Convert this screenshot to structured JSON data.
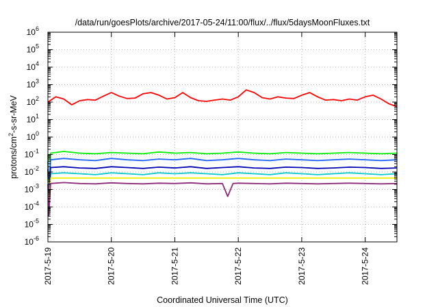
{
  "chart_data": {
    "type": "line",
    "title": "/data/run/goesPlots/archive/2017-05-24/11:00/flux/../flux/5daysMoonFluxes.txt",
    "xlabel": "Coordinated Universal Time (UTC)",
    "ylabel": {
      "base": "protons/cm",
      "sup": "2",
      "rest": "-s-sr-MeV"
    },
    "y_scale": "log",
    "ylim": [
      1e-06,
      1000000.0
    ],
    "xlim": [
      "2017-05-19 00:00",
      "2017-05-24 12:00"
    ],
    "grid": true,
    "x_ticks": [
      "2017-5-19",
      "2017-5-20",
      "2017-5-21",
      "2017-5-22",
      "2017-5-23",
      "2017-5-24"
    ],
    "y_ticks": [
      {
        "base": "10",
        "exp": "-6",
        "value": 1e-06
      },
      {
        "base": "10",
        "exp": "-5",
        "value": 1e-05
      },
      {
        "base": "10",
        "exp": "-4",
        "value": 0.0001
      },
      {
        "base": "10",
        "exp": "-3",
        "value": 0.001
      },
      {
        "base": "10",
        "exp": "-2",
        "value": 0.01
      },
      {
        "base": "10",
        "exp": "-1",
        "value": 0.1
      },
      {
        "base": "10",
        "exp": "0",
        "value": 1
      },
      {
        "base": "10",
        "exp": "1",
        "value": 10
      },
      {
        "base": "10",
        "exp": "2",
        "value": 100
      },
      {
        "base": "10",
        "exp": "3",
        "value": 1000
      },
      {
        "base": "10",
        "exp": "4",
        "value": 10000
      },
      {
        "base": "10",
        "exp": "5",
        "value": 100000
      },
      {
        "base": "10",
        "exp": "6",
        "value": 1000000
      }
    ],
    "series": [
      {
        "color": "#ff0000",
        "x": [
          "2017-05-19 00:00",
          "2017-05-19 03:00",
          "2017-05-19 06:00",
          "2017-05-19 09:00",
          "2017-05-19 12:00",
          "2017-05-19 15:00",
          "2017-05-19 18:00",
          "2017-05-19 21:00",
          "2017-05-20 00:00",
          "2017-05-20 03:00",
          "2017-05-20 06:00",
          "2017-05-20 09:00",
          "2017-05-20 12:00",
          "2017-05-20 15:00",
          "2017-05-20 18:00",
          "2017-05-20 21:00",
          "2017-05-21 00:00",
          "2017-05-21 03:00",
          "2017-05-21 06:00",
          "2017-05-21 09:00",
          "2017-05-21 12:00",
          "2017-05-21 15:00",
          "2017-05-21 18:00",
          "2017-05-21 21:00",
          "2017-05-22 00:00",
          "2017-05-22 03:00",
          "2017-05-22 06:00",
          "2017-05-22 09:00",
          "2017-05-22 12:00",
          "2017-05-22 15:00",
          "2017-05-22 18:00",
          "2017-05-22 21:00",
          "2017-05-23 00:00",
          "2017-05-23 03:00",
          "2017-05-23 06:00",
          "2017-05-23 09:00",
          "2017-05-23 12:00",
          "2017-05-23 15:00",
          "2017-05-23 18:00",
          "2017-05-23 21:00",
          "2017-05-24 00:00",
          "2017-05-24 03:00",
          "2017-05-24 06:00",
          "2017-05-24 09:00",
          "2017-05-24 12:00"
        ],
        "y": [
          100,
          200,
          150,
          70,
          120,
          140,
          130,
          220,
          350,
          220,
          160,
          170,
          300,
          350,
          250,
          150,
          180,
          350,
          180,
          120,
          110,
          130,
          150,
          130,
          200,
          500,
          350,
          180,
          150,
          200,
          170,
          160,
          250,
          350,
          200,
          130,
          140,
          120,
          150,
          130,
          200,
          250,
          150,
          80,
          55
        ]
      },
      {
        "color": "#00ee00",
        "x": [
          "2017-05-19 00:00",
          "2017-05-19 00:20",
          "2017-05-19 01:00",
          "2017-05-19 06:00",
          "2017-05-19 12:00",
          "2017-05-19 18:00",
          "2017-05-20 00:00",
          "2017-05-20 06:00",
          "2017-05-20 12:00",
          "2017-05-20 18:00",
          "2017-05-21 00:00",
          "2017-05-21 06:00",
          "2017-05-21 12:00",
          "2017-05-21 18:00",
          "2017-05-22 00:00",
          "2017-05-22 06:00",
          "2017-05-22 12:00",
          "2017-05-22 18:00",
          "2017-05-23 00:00",
          "2017-05-23 06:00",
          "2017-05-23 12:00",
          "2017-05-23 18:00",
          "2017-05-24 00:00",
          "2017-05-24 06:00",
          "2017-05-24 12:00"
        ],
        "y": [
          0.1,
          0.0003,
          0.12,
          0.15,
          0.12,
          0.11,
          0.13,
          0.12,
          0.11,
          0.14,
          0.12,
          0.13,
          0.11,
          0.12,
          0.14,
          0.12,
          0.11,
          0.13,
          0.12,
          0.11,
          0.12,
          0.13,
          0.12,
          0.11,
          0.12
        ]
      },
      {
        "color": "#00c8c8",
        "x": [
          "2017-05-19 00:00",
          "2017-05-19 00:20",
          "2017-05-19 01:00",
          "2017-05-19 06:00",
          "2017-05-19 12:00",
          "2017-05-19 18:00",
          "2017-05-20 00:00",
          "2017-05-20 06:00",
          "2017-05-20 12:00",
          "2017-05-20 18:00",
          "2017-05-21 00:00",
          "2017-05-21 06:00",
          "2017-05-21 12:00",
          "2017-05-21 18:00",
          "2017-05-22 00:00",
          "2017-05-22 06:00",
          "2017-05-22 12:00",
          "2017-05-22 18:00",
          "2017-05-23 00:00",
          "2017-05-23 06:00",
          "2017-05-23 12:00",
          "2017-05-23 18:00",
          "2017-05-24 00:00",
          "2017-05-24 06:00",
          "2017-05-24 12:00"
        ],
        "y": [
          0.008,
          0.0001,
          0.008,
          0.009,
          0.008,
          0.007,
          0.009,
          0.008,
          0.007,
          0.009,
          0.008,
          0.009,
          0.008,
          0.007,
          0.009,
          0.008,
          0.007,
          0.009,
          0.008,
          0.007,
          0.008,
          0.009,
          0.008,
          0.007,
          0.008
        ]
      },
      {
        "color": "#1e64ff",
        "x": [
          "2017-05-19 00:00",
          "2017-05-19 00:20",
          "2017-05-19 01:00",
          "2017-05-19 06:00",
          "2017-05-19 12:00",
          "2017-05-19 18:00",
          "2017-05-20 00:00",
          "2017-05-20 06:00",
          "2017-05-20 12:00",
          "2017-05-20 18:00",
          "2017-05-21 00:00",
          "2017-05-21 06:00",
          "2017-05-21 12:00",
          "2017-05-21 18:00",
          "2017-05-22 00:00",
          "2017-05-22 06:00",
          "2017-05-22 12:00",
          "2017-05-22 18:00",
          "2017-05-23 00:00",
          "2017-05-23 06:00",
          "2017-05-23 12:00",
          "2017-05-23 18:00",
          "2017-05-24 00:00",
          "2017-05-24 06:00",
          "2017-05-24 12:00"
        ],
        "y": [
          0.04,
          0.0002,
          0.05,
          0.06,
          0.05,
          0.045,
          0.06,
          0.05,
          0.045,
          0.055,
          0.05,
          0.06,
          0.045,
          0.05,
          0.06,
          0.05,
          0.045,
          0.055,
          0.05,
          0.045,
          0.05,
          0.055,
          0.05,
          0.045,
          0.05
        ]
      },
      {
        "color": "#0000b4",
        "x": [
          "2017-05-19 00:00",
          "2017-05-19 00:20",
          "2017-05-19 01:00",
          "2017-05-19 06:00",
          "2017-05-19 12:00",
          "2017-05-19 18:00",
          "2017-05-20 00:00",
          "2017-05-20 06:00",
          "2017-05-20 12:00",
          "2017-05-20 18:00",
          "2017-05-21 00:00",
          "2017-05-21 06:00",
          "2017-05-21 12:00",
          "2017-05-21 18:00",
          "2017-05-22 00:00",
          "2017-05-22 06:00",
          "2017-05-22 12:00",
          "2017-05-22 18:00",
          "2017-05-23 00:00",
          "2017-05-23 06:00",
          "2017-05-23 12:00",
          "2017-05-23 18:00",
          "2017-05-24 00:00",
          "2017-05-24 06:00",
          "2017-05-24 12:00"
        ],
        "y": [
          0.015,
          0.0002,
          0.018,
          0.02,
          0.017,
          0.016,
          0.02,
          0.018,
          0.016,
          0.019,
          0.017,
          0.02,
          0.016,
          0.018,
          0.02,
          0.017,
          0.016,
          0.019,
          0.018,
          0.016,
          0.017,
          0.019,
          0.018,
          0.016,
          0.017
        ]
      },
      {
        "color": "#f0f000",
        "x": [
          "2017-05-19 00:00",
          "2017-05-19 00:20",
          "2017-05-19 01:00",
          "2017-05-19 06:00",
          "2017-05-19 12:00",
          "2017-05-19 18:00",
          "2017-05-20 00:00",
          "2017-05-20 06:00",
          "2017-05-20 12:00",
          "2017-05-20 18:00",
          "2017-05-21 00:00",
          "2017-05-21 06:00",
          "2017-05-21 12:00",
          "2017-05-21 18:00",
          "2017-05-22 00:00",
          "2017-05-22 06:00",
          "2017-05-22 12:00",
          "2017-05-22 18:00",
          "2017-05-23 00:00",
          "2017-05-23 06:00",
          "2017-05-23 12:00",
          "2017-05-23 18:00",
          "2017-05-24 00:00",
          "2017-05-24 06:00",
          "2017-05-24 12:00"
        ],
        "y": [
          0.004,
          0.0001,
          0.0045,
          0.0045,
          0.0045,
          0.0045,
          0.0045,
          0.0045,
          0.0045,
          0.0045,
          0.0045,
          0.0045,
          0.0045,
          0.0045,
          0.0045,
          0.0045,
          0.0045,
          0.0045,
          0.0045,
          0.0045,
          0.0045,
          0.0045,
          0.0045,
          0.0045,
          0.0045
        ]
      },
      {
        "color": "#8c2a78",
        "x": [
          "2017-05-19 00:00",
          "2017-05-19 00:20",
          "2017-05-19 01:00",
          "2017-05-19 06:00",
          "2017-05-19 12:00",
          "2017-05-19 18:00",
          "2017-05-20 00:00",
          "2017-05-20 06:00",
          "2017-05-20 12:00",
          "2017-05-20 18:00",
          "2017-05-21 00:00",
          "2017-05-21 06:00",
          "2017-05-21 12:00",
          "2017-05-21 18:00",
          "2017-05-21 20:00",
          "2017-05-21 22:00",
          "2017-05-22 00:00",
          "2017-05-22 06:00",
          "2017-05-22 12:00",
          "2017-05-22 18:00",
          "2017-05-23 00:00",
          "2017-05-23 06:00",
          "2017-05-23 12:00",
          "2017-05-23 18:00",
          "2017-05-24 00:00",
          "2017-05-24 06:00",
          "2017-05-24 12:00"
        ],
        "y": [
          0.002,
          3e-05,
          0.0022,
          0.0025,
          0.0022,
          0.0021,
          0.0024,
          0.0022,
          0.0021,
          0.0023,
          0.0022,
          0.0024,
          0.0021,
          0.0022,
          0.0004,
          0.0022,
          0.0023,
          0.0022,
          0.0021,
          0.0023,
          0.0022,
          0.0021,
          0.0022,
          0.0023,
          0.0022,
          0.0021,
          0.0022
        ]
      }
    ]
  }
}
